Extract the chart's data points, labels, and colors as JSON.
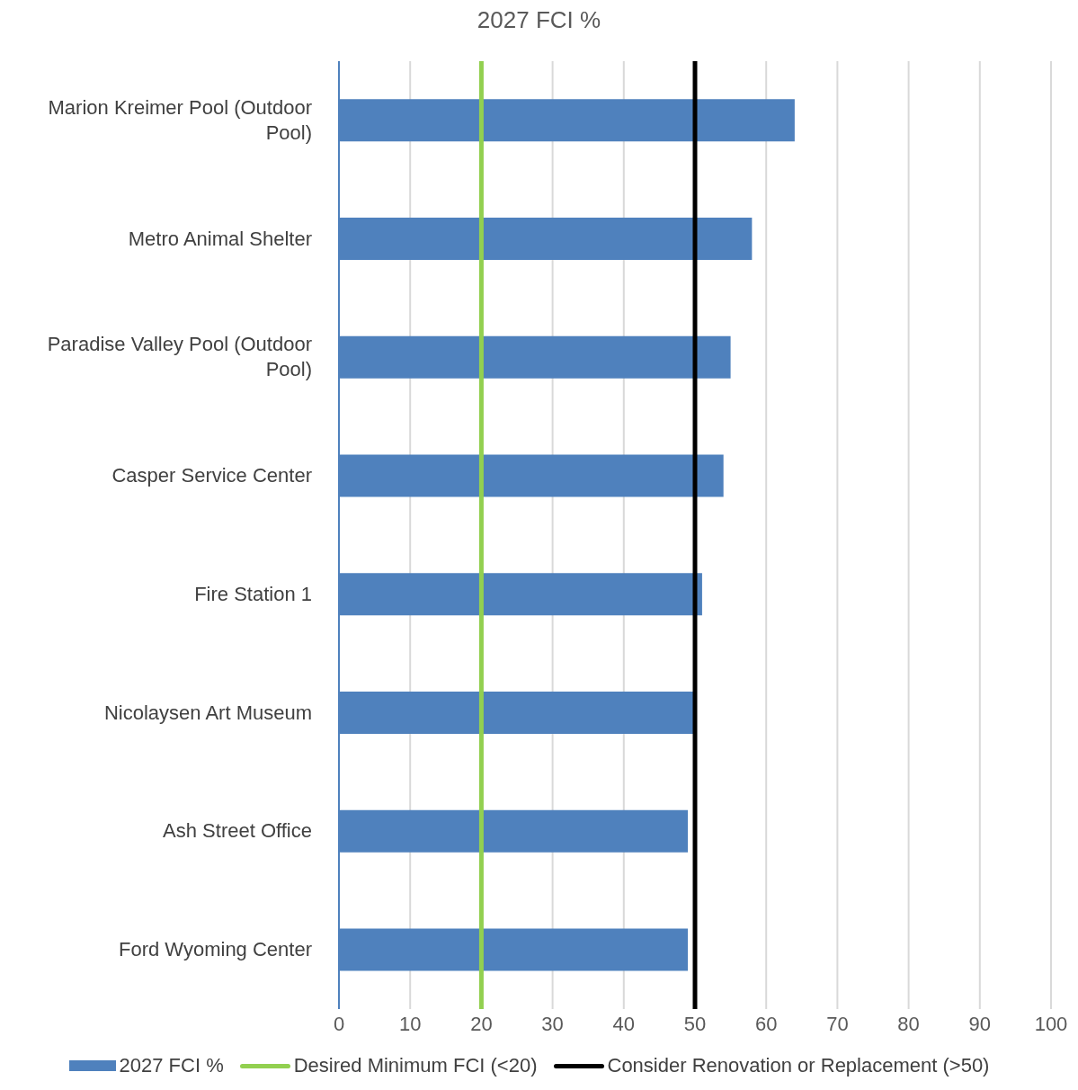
{
  "chart_data": {
    "type": "bar",
    "orientation": "horizontal",
    "title": "2027 FCI %",
    "categories": [
      "Marion Kreimer Pool (Outdoor Pool)",
      "Metro Animal Shelter",
      "Paradise Valley Pool (Outdoor Pool)",
      "Casper Service Center",
      "Fire Station 1",
      "Nicolaysen Art Museum",
      "Ash Street Office",
      "Ford Wyoming Center"
    ],
    "series": [
      {
        "name": "2027 FCI %",
        "color": "#4f81bd",
        "values": [
          64,
          58,
          55,
          54,
          51,
          50,
          49,
          49
        ]
      }
    ],
    "xlim": [
      0,
      100
    ],
    "xticks": [
      0,
      10,
      20,
      30,
      40,
      50,
      60,
      70,
      80,
      90,
      100
    ],
    "grid": "x",
    "legend": "bottom",
    "ref_lines": [
      {
        "axis": "x",
        "value": 20,
        "label": "Desired Minimum FCI (<20)",
        "color": "#92d050"
      },
      {
        "axis": "x",
        "value": 50,
        "label": "Consider Renovation or Replacement (>50)",
        "color": "#000000"
      }
    ]
  }
}
